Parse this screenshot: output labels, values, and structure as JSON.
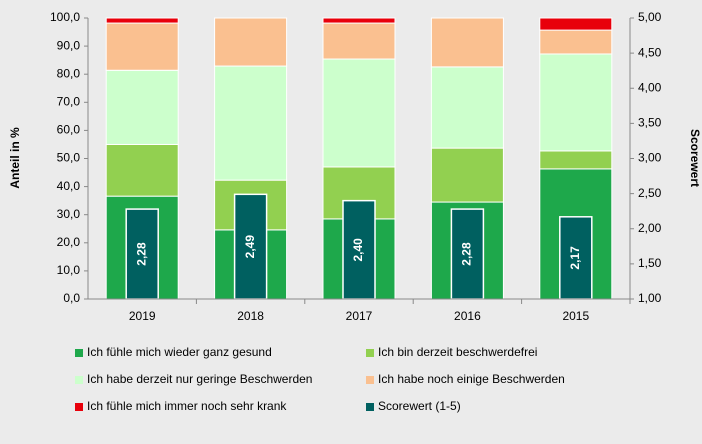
{
  "chart_data": {
    "type": "stacked_bar",
    "categories": [
      "2019",
      "2018",
      "2017",
      "2016",
      "2015"
    ],
    "series": [
      {
        "name": "Ich fühle mich wieder ganz gesund",
        "color": "#1ea84b",
        "values": [
          36.6,
          24.6,
          28.5,
          34.5,
          46.3
        ]
      },
      {
        "name": "Ich bin derzeit beschwerdefrei",
        "color": "#92d050",
        "values": [
          18.4,
          17.7,
          18.5,
          19.2,
          6.4
        ]
      },
      {
        "name": "Ich habe derzeit nur geringe Beschwerden",
        "color": "#ccffcc",
        "values": [
          26.4,
          40.6,
          38.4,
          28.9,
          34.5
        ]
      },
      {
        "name": "Ich habe noch einige Beschwerden",
        "color": "#fac090",
        "values": [
          16.8,
          17.1,
          12.8,
          17.4,
          8.5
        ]
      },
      {
        "name": "Ich fühle mich immer noch sehr krank",
        "color": "#e8000b",
        "values": [
          1.8,
          0,
          1.8,
          0,
          4.3
        ]
      },
      {
        "name": "Scorewert (1-5)",
        "color": "#006060",
        "axis": "y2",
        "values": [
          2.28,
          2.49,
          2.4,
          2.28,
          2.17
        ],
        "value_labels": [
          "2,28",
          "2,49",
          "2,40",
          "2,28",
          "2,17"
        ]
      }
    ],
    "ylabel": "Anteil in %",
    "y2label": "Scorewert",
    "ylim": [
      0,
      100
    ],
    "yticks": [
      {
        "value": 0,
        "label": "0,0"
      },
      {
        "value": 10,
        "label": "10,0"
      },
      {
        "value": 20,
        "label": "20,0"
      },
      {
        "value": 30,
        "label": "30,0"
      },
      {
        "value": 40,
        "label": "40,0"
      },
      {
        "value": 50,
        "label": "50,0"
      },
      {
        "value": 60,
        "label": "60,0"
      },
      {
        "value": 70,
        "label": "70,0"
      },
      {
        "value": 80,
        "label": "80,0"
      },
      {
        "value": 90,
        "label": "90,0"
      },
      {
        "value": 100,
        "label": "100,0"
      }
    ],
    "y2lim": [
      1,
      5
    ],
    "y2ticks": [
      {
        "value": 1,
        "label": "1,00"
      },
      {
        "value": 1.5,
        "label": "1,50"
      },
      {
        "value": 2,
        "label": "2,00"
      },
      {
        "value": 2.5,
        "label": "2,50"
      },
      {
        "value": 3,
        "label": "3,00"
      },
      {
        "value": 3.5,
        "label": "3,50"
      },
      {
        "value": 4,
        "label": "4,00"
      },
      {
        "value": 4.5,
        "label": "4,50"
      },
      {
        "value": 5,
        "label": "5,00"
      }
    ],
    "legend": "bottom"
  }
}
